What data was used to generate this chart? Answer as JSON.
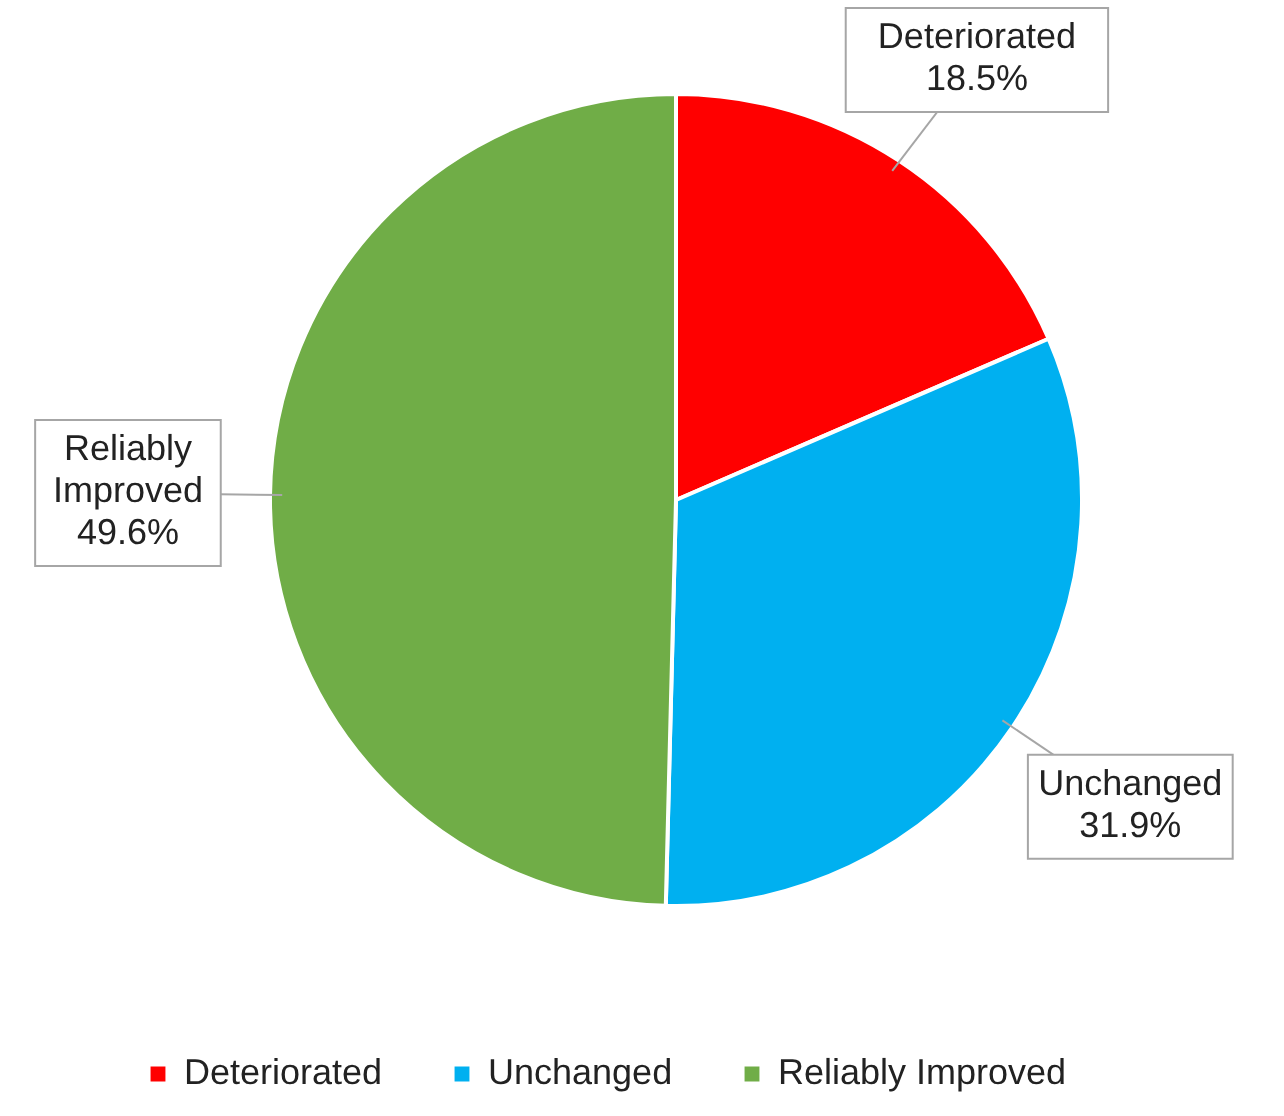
{
  "chart_data": {
    "type": "pie",
    "categories": [
      "Deteriorated",
      "Unchanged",
      "Reliably Improved"
    ],
    "values": [
      18.5,
      31.9,
      49.6
    ],
    "colors": [
      "#ff0000",
      "#00b0f0",
      "#70ad47"
    ],
    "value_labels": [
      "18.5%",
      "31.9%",
      "49.6%"
    ],
    "legend": "bottom"
  }
}
